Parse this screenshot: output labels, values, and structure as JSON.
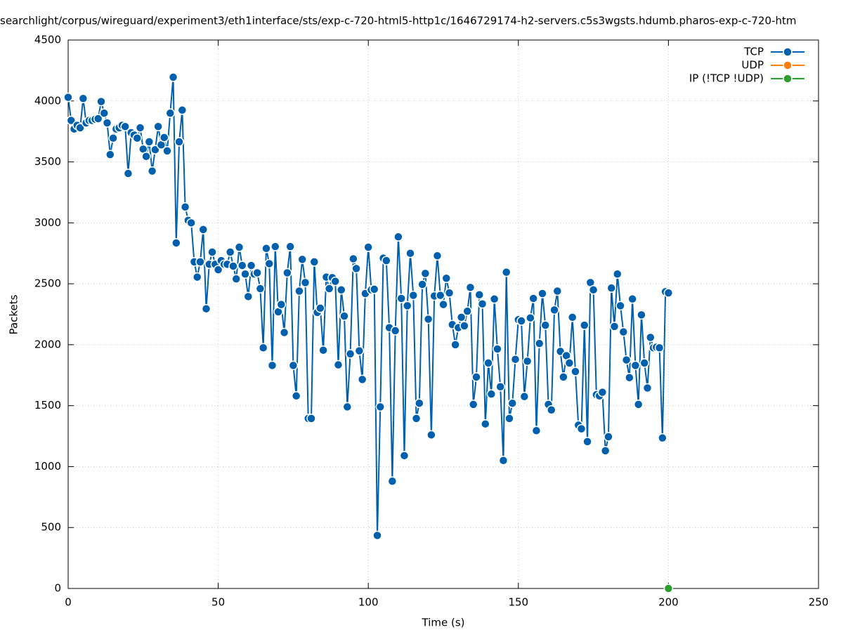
{
  "chart_data": {
    "type": "line",
    "title": "searchlight/corpus/wireguard/experiment3/eth1interface/sts/exp-c-720-html5-http1c/1646729174-h2-servers.c5s3wgsts.hdumb.pharos-exp-c-720-htm",
    "xlabel": "Time (s)",
    "ylabel": "Packets",
    "xlim": [
      0,
      250
    ],
    "xticks": [
      0,
      50,
      100,
      150,
      200,
      250
    ],
    "ylim": [
      0,
      4500
    ],
    "yticks": [
      0,
      500,
      1000,
      1500,
      2000,
      2500,
      3000,
      3500,
      4000,
      4500
    ],
    "grid": true,
    "legend": "top-right",
    "series": [
      {
        "name": "TCP",
        "color": "#0060ad",
        "x": [
          0,
          1,
          2,
          3,
          4,
          5,
          6,
          7,
          8,
          9,
          10,
          11,
          12,
          13,
          14,
          15,
          16,
          17,
          18,
          19,
          20,
          21,
          22,
          23,
          24,
          25,
          26,
          27,
          28,
          29,
          30,
          31,
          32,
          33,
          34,
          35,
          36,
          37,
          38,
          39,
          40,
          41,
          42,
          43,
          44,
          45,
          46,
          47,
          48,
          49,
          50,
          51,
          52,
          53,
          54,
          55,
          56,
          57,
          58,
          59,
          60,
          61,
          62,
          63,
          64,
          65,
          66,
          67,
          68,
          69,
          70,
          71,
          72,
          73,
          74,
          75,
          76,
          77,
          78,
          79,
          80,
          81,
          82,
          83,
          84,
          85,
          86,
          87,
          88,
          89,
          90,
          91,
          92,
          93,
          94,
          95,
          96,
          97,
          98,
          99,
          100,
          101,
          102,
          103,
          104,
          105,
          106,
          107,
          108,
          109,
          110,
          111,
          112,
          113,
          114,
          115,
          116,
          117,
          118,
          119,
          120,
          121,
          122,
          123,
          124,
          125,
          126,
          127,
          128,
          129,
          130,
          131,
          132,
          133,
          134,
          135,
          136,
          137,
          138,
          139,
          140,
          141,
          142,
          143,
          144,
          145,
          146,
          147,
          148,
          149,
          150,
          151,
          152,
          153,
          154,
          155,
          156,
          157,
          158,
          159,
          160,
          161,
          162,
          163,
          164,
          165,
          166,
          167,
          168,
          169,
          170,
          171,
          172,
          173,
          174,
          175,
          176,
          177,
          178,
          179,
          180,
          181,
          182,
          183,
          184,
          185,
          186,
          187,
          188,
          189,
          190,
          191,
          192,
          193,
          194,
          195,
          196,
          197,
          198,
          199,
          200
        ],
        "values": [
          4030,
          3840,
          3770,
          3800,
          3780,
          4020,
          3820,
          3840,
          3840,
          3850,
          3855,
          3995,
          3900,
          3820,
          3560,
          3695,
          3770,
          3780,
          3800,
          3790,
          3405,
          3740,
          3720,
          3695,
          3780,
          3605,
          3545,
          3665,
          3425,
          3600,
          3790,
          3640,
          3700,
          3590,
          3900,
          4195,
          2835,
          3665,
          3925,
          3130,
          3020,
          3000,
          2680,
          2555,
          2680,
          2945,
          2295,
          2660,
          2760,
          2660,
          2615,
          2690,
          2660,
          2660,
          2760,
          2645,
          2540,
          2800,
          2650,
          2580,
          2395,
          2650,
          2580,
          2590,
          2460,
          1975,
          2790,
          2665,
          1830,
          2805,
          2270,
          2330,
          2100,
          2590,
          2805,
          1830,
          1580,
          2440,
          2700,
          2510,
          1395,
          1395,
          2680,
          2265,
          2300,
          1955,
          2555,
          2460,
          2550,
          2520,
          1835,
          2450,
          2235,
          1490,
          1925,
          2705,
          2625,
          1950,
          1715,
          2420,
          2800,
          2450,
          2455,
          435,
          1490,
          2710,
          2690,
          2140,
          880,
          2115,
          2885,
          2380,
          1090,
          2320,
          2750,
          2405,
          1395,
          1520,
          2495,
          2585,
          2210,
          1260,
          2400,
          2730,
          2405,
          2330,
          2545,
          2425,
          2165,
          2000,
          2140,
          2225,
          2155,
          2275,
          2470,
          1510,
          1735,
          2410,
          2335,
          1350,
          1850,
          1595,
          2375,
          1965,
          1655,
          1050,
          2595,
          1395,
          1520,
          1880,
          2205,
          2195,
          1575,
          1865,
          2220,
          2380,
          1295,
          2010,
          2420,
          2160,
          1510,
          1465,
          2285,
          2440,
          1945,
          1735,
          1910,
          1850,
          2225,
          1780,
          1340,
          1310,
          2160,
          1205,
          2510,
          2450,
          1590,
          1580,
          1610,
          1130,
          1245,
          2465,
          2150,
          2580,
          2320,
          2105,
          1875,
          1730,
          2375,
          1830,
          1510,
          2245,
          1850,
          1645,
          2060,
          1975,
          1980,
          1975,
          1235,
          2435,
          2425
        ]
      },
      {
        "name": "UDP",
        "color": "#ff7f0e",
        "x": [],
        "values": []
      },
      {
        "name": "IP (!TCP  !UDP)",
        "color": "#2ca02c",
        "x": [
          200
        ],
        "values": [
          0
        ]
      }
    ]
  }
}
